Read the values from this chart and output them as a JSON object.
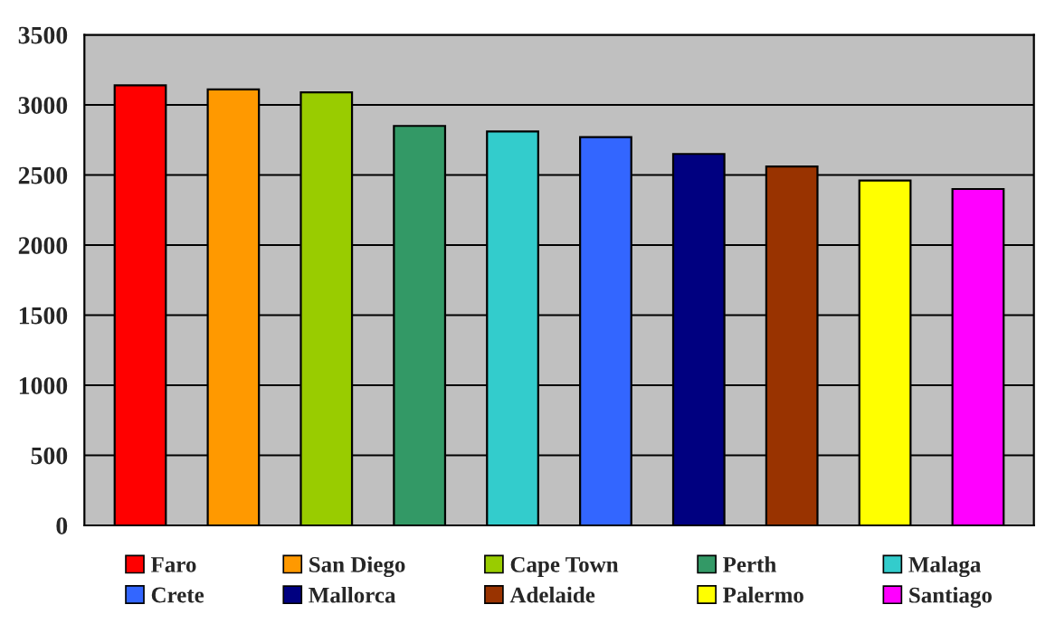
{
  "chart_data": {
    "type": "bar",
    "categories": [
      null,
      null,
      null,
      null,
      null,
      null,
      null,
      null,
      null,
      null
    ],
    "series": [
      {
        "name": "Faro",
        "color": "#ff0000",
        "values": [
          3140,
          null,
          null,
          null,
          null,
          null,
          null,
          null,
          null,
          null
        ]
      },
      {
        "name": "San Diego",
        "color": "#ff9900",
        "values": [
          null,
          3110,
          null,
          null,
          null,
          null,
          null,
          null,
          null,
          null
        ]
      },
      {
        "name": "Cape Town",
        "color": "#99cc00",
        "values": [
          null,
          null,
          3090,
          null,
          null,
          null,
          null,
          null,
          null,
          null
        ]
      },
      {
        "name": "Perth",
        "color": "#339966",
        "values": [
          null,
          null,
          null,
          2850,
          null,
          null,
          null,
          null,
          null,
          null
        ]
      },
      {
        "name": "Malaga",
        "color": "#33cccc",
        "values": [
          null,
          null,
          null,
          null,
          2810,
          null,
          null,
          null,
          null,
          null
        ]
      },
      {
        "name": "Crete",
        "color": "#3366ff",
        "values": [
          null,
          null,
          null,
          null,
          null,
          2770,
          null,
          null,
          null,
          null
        ]
      },
      {
        "name": "Mallorca",
        "color": "#000080",
        "values": [
          null,
          null,
          null,
          null,
          null,
          null,
          2650,
          null,
          null,
          null
        ]
      },
      {
        "name": "Adelaide",
        "color": "#993300",
        "values": [
          null,
          null,
          null,
          null,
          null,
          null,
          null,
          2560,
          null,
          null
        ]
      },
      {
        "name": "Palermo",
        "color": "#ffff00",
        "values": [
          null,
          null,
          null,
          null,
          null,
          null,
          null,
          null,
          2460,
          null
        ]
      },
      {
        "name": "Santiago",
        "color": "#ff00ff",
        "values": [
          null,
          null,
          null,
          null,
          null,
          null,
          null,
          null,
          null,
          2400
        ]
      }
    ],
    "ylim": [
      0,
      3500
    ],
    "yticks": [
      0,
      500,
      1000,
      1500,
      2000,
      2500,
      3000,
      3500
    ],
    "grid": "y",
    "legend": "bottom",
    "tick_labels": "y"
  }
}
